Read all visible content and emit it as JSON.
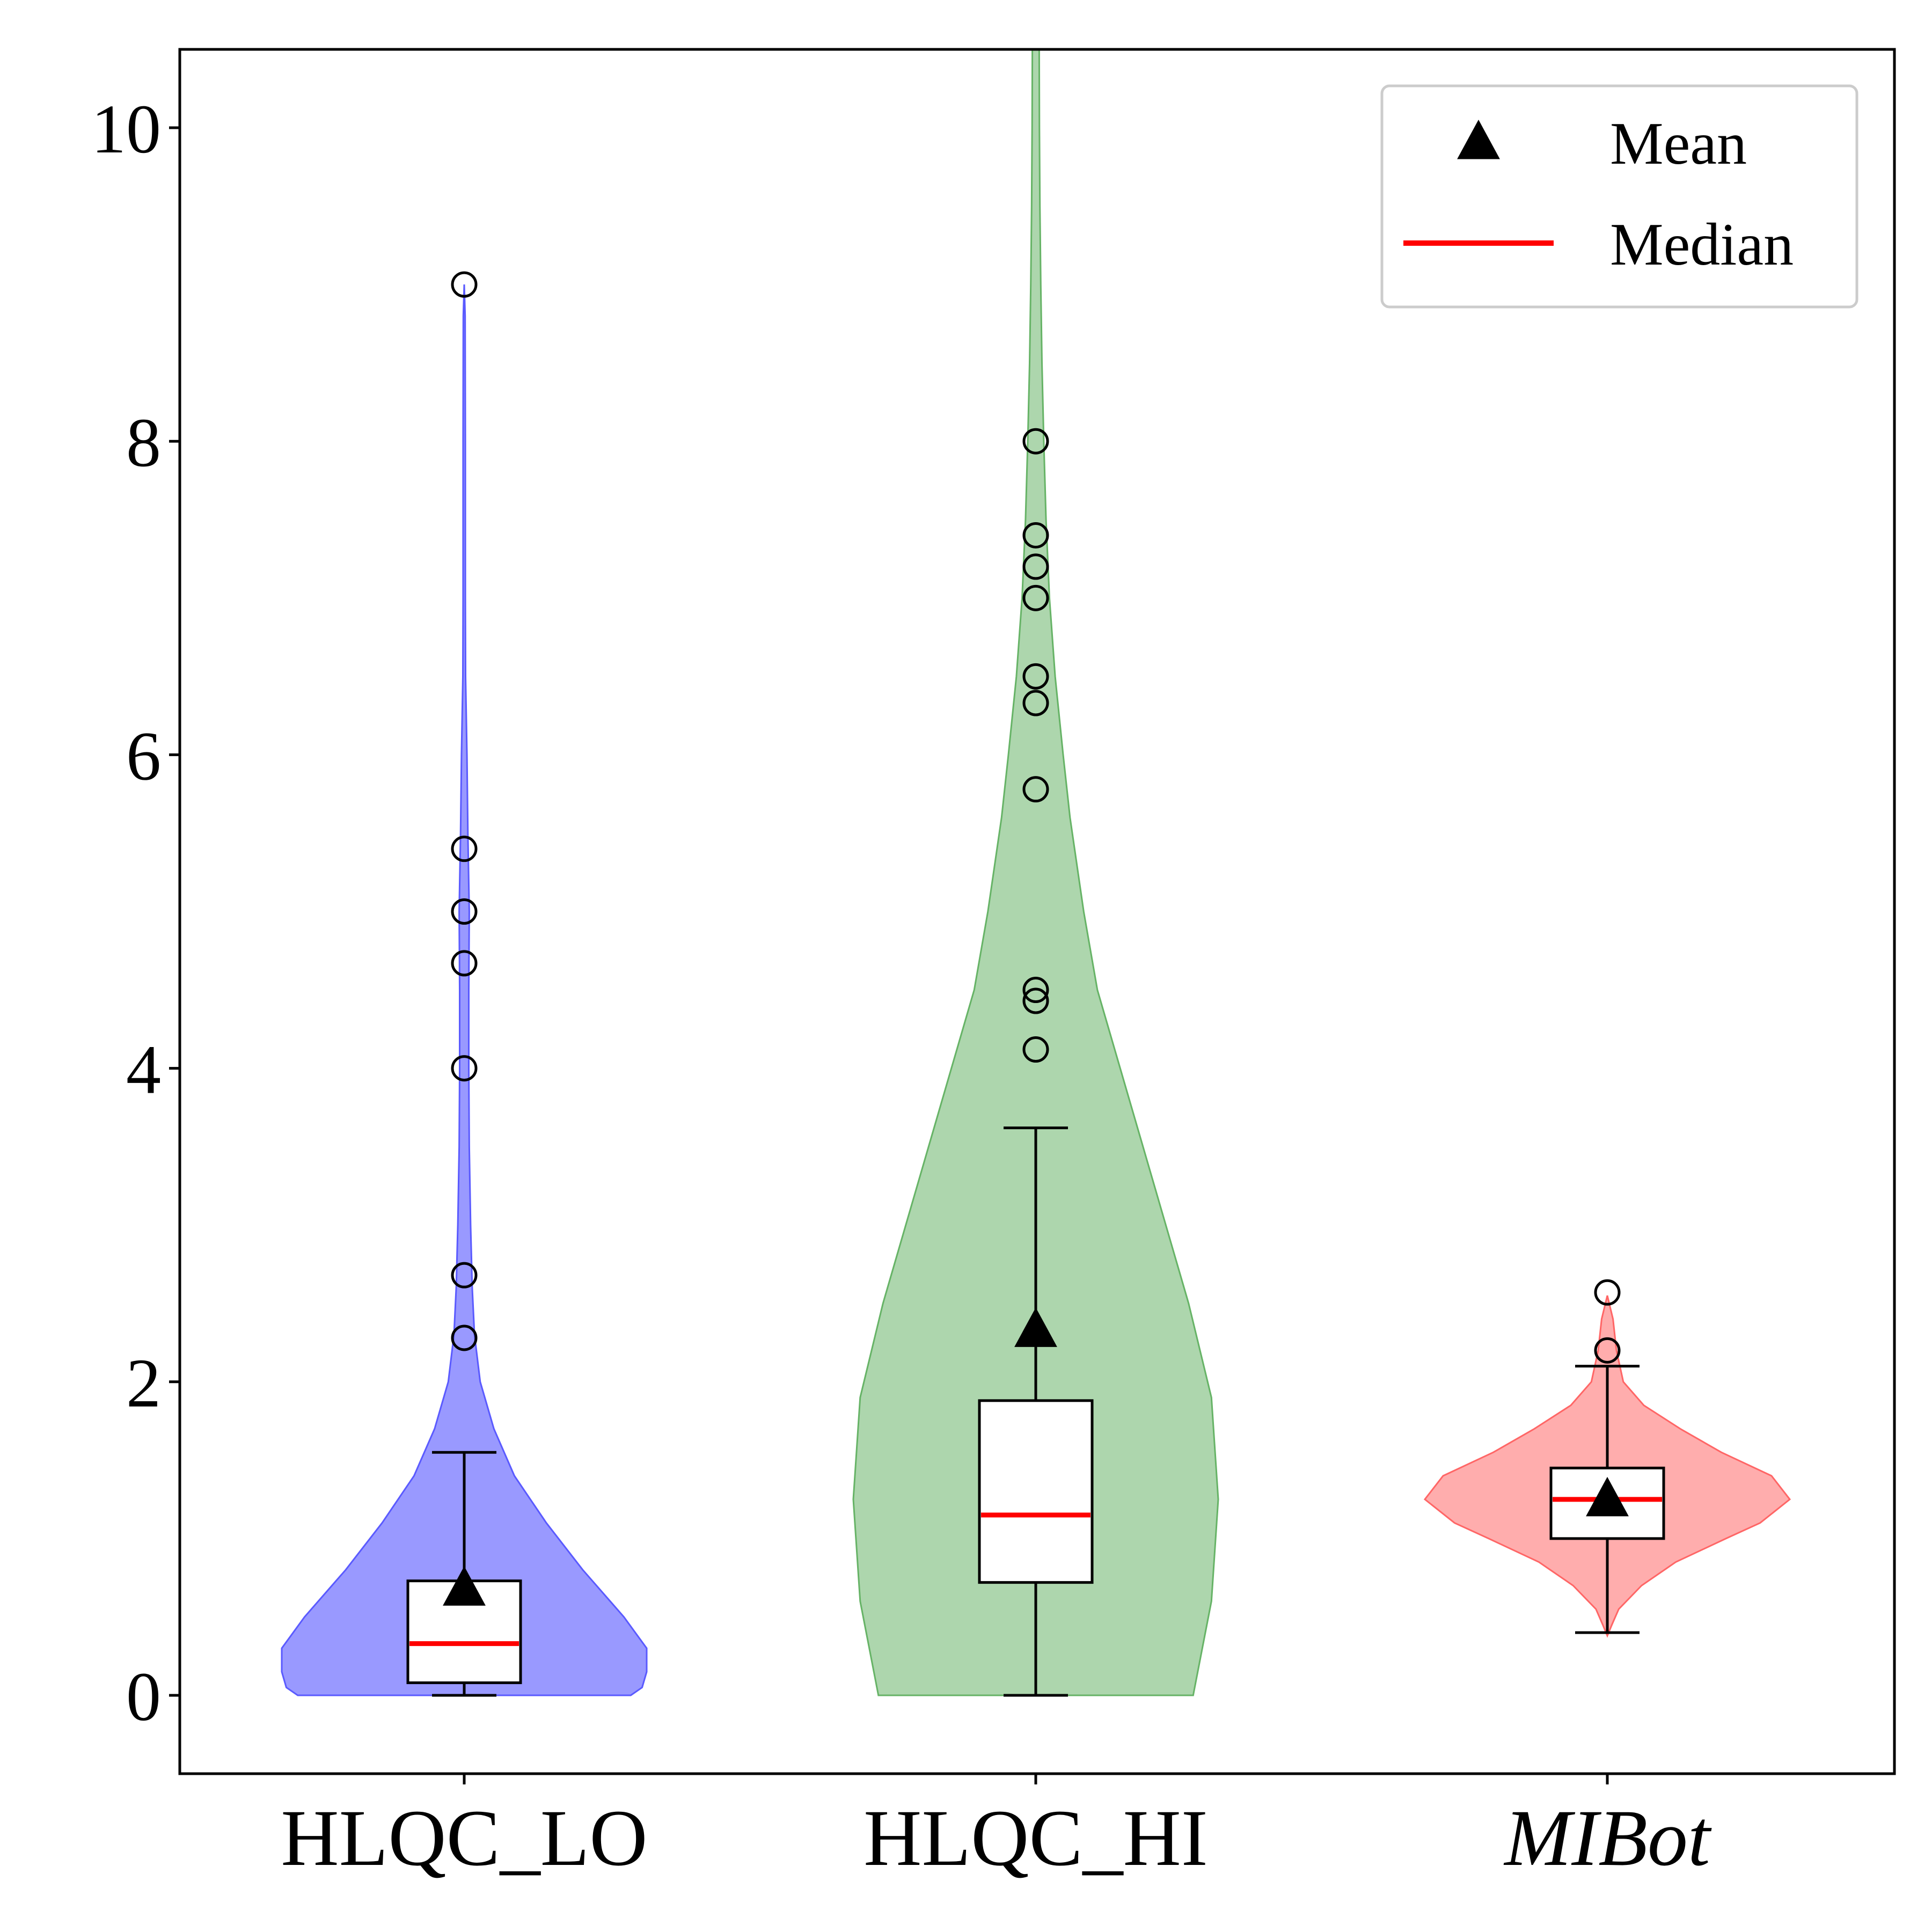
{
  "chart_data": {
    "type": "violin",
    "categories": [
      {
        "label": "HLQC_LO",
        "italic": false
      },
      {
        "label": "HLQC_HI",
        "italic": false
      },
      {
        "label": "MIBot",
        "italic": true
      }
    ],
    "ylim": [
      -0.5,
      10.5
    ],
    "yticks": [
      "0",
      "2",
      "4",
      "6",
      "8",
      "10"
    ],
    "xlabel": "",
    "ylabel": "",
    "title": "",
    "grid": false,
    "legend": {
      "placement": "top-right",
      "entries": [
        {
          "label": "Mean",
          "marker": "triangle",
          "color": "#000000"
        },
        {
          "label": "Median",
          "marker": "line",
          "color": "#ff0000"
        }
      ]
    },
    "series": [
      {
        "category": "HLQC_LO",
        "fill": "#8080ff",
        "edge": "#5a5aff",
        "density": [
          [
            0,
            0.73
          ],
          [
            0.05,
            0.78
          ],
          [
            0.15,
            0.8
          ],
          [
            0.3,
            0.8
          ],
          [
            0.5,
            0.7
          ],
          [
            0.8,
            0.52
          ],
          [
            1.1,
            0.36
          ],
          [
            1.4,
            0.22
          ],
          [
            1.7,
            0.13
          ],
          [
            2.0,
            0.07
          ],
          [
            2.3,
            0.045
          ],
          [
            2.6,
            0.035
          ],
          [
            3.0,
            0.028
          ],
          [
            3.5,
            0.022
          ],
          [
            4.0,
            0.02
          ],
          [
            4.5,
            0.02
          ],
          [
            5.0,
            0.022
          ],
          [
            5.5,
            0.016
          ],
          [
            6.0,
            0.012
          ],
          [
            6.5,
            0.006
          ],
          [
            7.0,
            0.005
          ],
          [
            8.0,
            0.005
          ],
          [
            8.8,
            0.004
          ],
          [
            9.0,
            0.0
          ]
        ],
        "box": {
          "q1": 0.08,
          "median": 0.33,
          "q3": 0.73,
          "whisker_low": 0.0,
          "whisker_high": 1.55
        },
        "mean": 0.68,
        "outliers": [
          2.28,
          2.68,
          4.0,
          4.67,
          5.0,
          5.4,
          9.0
        ]
      },
      {
        "category": "HLQC_HI",
        "fill": "#99cc99",
        "edge": "#66b366",
        "density": [
          [
            0,
            0.69
          ],
          [
            0.6,
            0.77
          ],
          [
            1.25,
            0.8
          ],
          [
            1.9,
            0.77
          ],
          [
            2.5,
            0.67
          ],
          [
            3.0,
            0.57
          ],
          [
            3.5,
            0.47
          ],
          [
            4.0,
            0.37
          ],
          [
            4.5,
            0.27
          ],
          [
            5.0,
            0.21
          ],
          [
            5.6,
            0.15
          ],
          [
            6.0,
            0.12
          ],
          [
            6.5,
            0.085
          ],
          [
            7.0,
            0.06
          ],
          [
            7.5,
            0.045
          ],
          [
            8.0,
            0.035
          ],
          [
            8.5,
            0.027
          ],
          [
            9.0,
            0.022
          ],
          [
            9.5,
            0.018
          ],
          [
            10.0,
            0.016
          ],
          [
            10.5,
            0.015
          ]
        ],
        "box": {
          "q1": 0.72,
          "median": 1.15,
          "q3": 1.88,
          "whisker_low": 0.0,
          "whisker_high": 3.62
        },
        "mean": 2.33,
        "outliers": [
          4.12,
          4.43,
          4.5,
          5.78,
          6.33,
          6.5,
          7.0,
          7.2,
          7.4,
          8.0
        ]
      },
      {
        "category": "MIBot",
        "fill": "#ff9999",
        "edge": "#ff6666",
        "density": [
          [
            0.38,
            0.0
          ],
          [
            0.45,
            0.02
          ],
          [
            0.55,
            0.05
          ],
          [
            0.7,
            0.15
          ],
          [
            0.85,
            0.3
          ],
          [
            1.0,
            0.52
          ],
          [
            1.1,
            0.67
          ],
          [
            1.25,
            0.8
          ],
          [
            1.4,
            0.72
          ],
          [
            1.55,
            0.5
          ],
          [
            1.7,
            0.32
          ],
          [
            1.85,
            0.16
          ],
          [
            2.0,
            0.07
          ],
          [
            2.2,
            0.04
          ],
          [
            2.4,
            0.025
          ],
          [
            2.55,
            0.0
          ]
        ],
        "box": {
          "q1": 1.0,
          "median": 1.25,
          "q3": 1.45,
          "whisker_low": 0.4,
          "whisker_high": 2.1
        },
        "mean": 1.25,
        "outliers": [
          2.2,
          2.57
        ]
      }
    ]
  }
}
